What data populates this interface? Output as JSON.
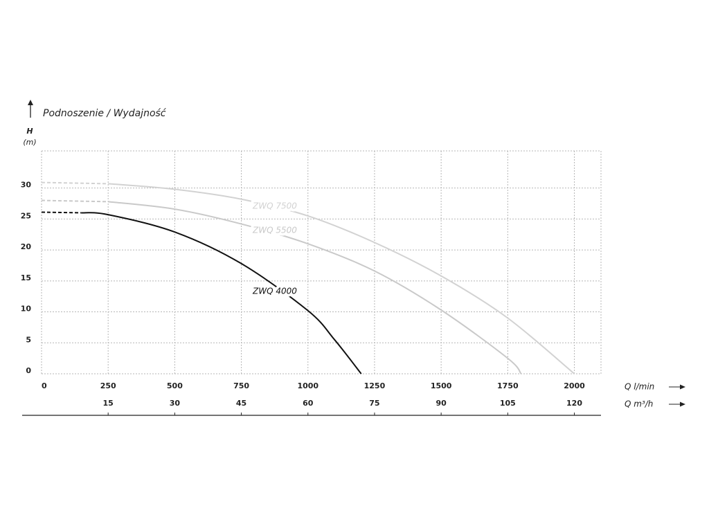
{
  "chart_data": {
    "type": "line",
    "title": "Podnoszenie / Wydajność",
    "y_label": "H",
    "y_unit": "(m)",
    "x_label": "Q l/min",
    "x2_label": "Q m³/h",
    "xlim": [
      0,
      2100
    ],
    "xticks": [
      0,
      250,
      500,
      750,
      1000,
      1250,
      1500,
      1750,
      2000
    ],
    "x2lim": [
      0,
      126
    ],
    "x2ticks": [
      15,
      30,
      45,
      60,
      75,
      90,
      105,
      120
    ],
    "ylim": [
      0,
      36
    ],
    "yticks": [
      0,
      5,
      10,
      15,
      20,
      25,
      30
    ],
    "grid": true,
    "series": [
      {
        "name": "ZWQ 7500",
        "color": "#d2d2d2",
        "x": [
          0,
          250,
          500,
          750,
          1000,
          1250,
          1500,
          1750,
          2000
        ],
        "values": [
          30.9,
          30.7,
          29.8,
          28.2,
          25.5,
          21.2,
          15.8,
          9,
          0
        ]
      },
      {
        "name": "ZWQ 5500",
        "color": "#c9c9c9",
        "x": [
          0,
          250,
          500,
          750,
          1000,
          1250,
          1500,
          1750,
          1800
        ],
        "values": [
          28,
          27.8,
          26.6,
          24.2,
          21,
          16.6,
          10.3,
          2.5,
          0
        ]
      },
      {
        "name": "ZWQ 4000",
        "color": "#111111",
        "x": [
          0,
          150,
          250,
          500,
          750,
          1000,
          1100,
          1200
        ],
        "values": [
          26.1,
          26,
          25.7,
          22.9,
          17.8,
          10.2,
          5.5,
          0
        ]
      }
    ]
  }
}
